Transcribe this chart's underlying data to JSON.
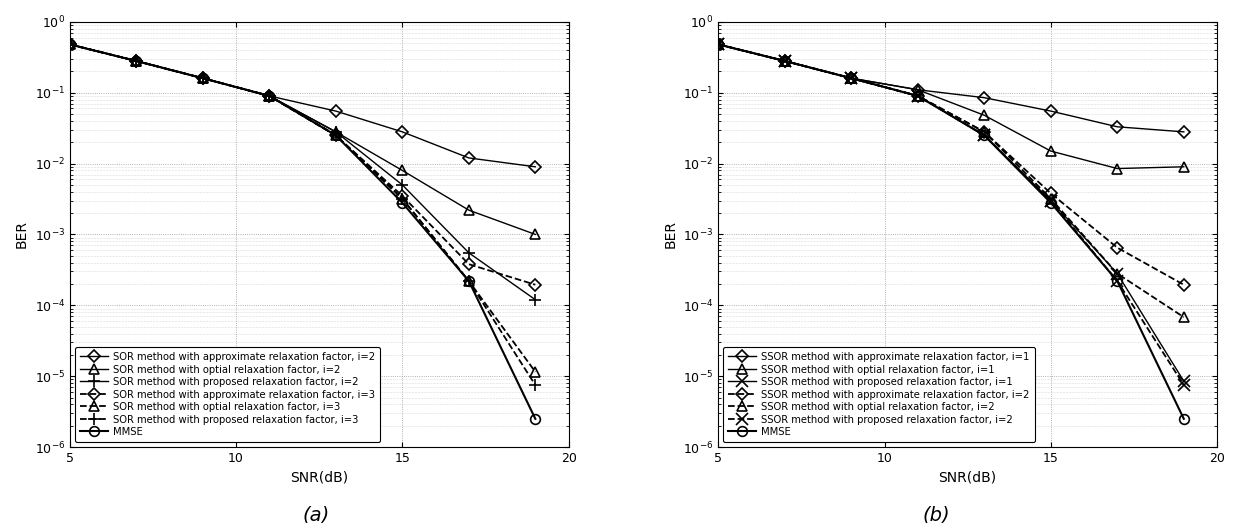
{
  "snr": [
    5,
    7,
    9,
    11,
    13,
    15,
    17,
    19
  ],
  "plot_a": {
    "title": "(a)",
    "xlabel": "SNR(dB)",
    "ylabel": "BER",
    "ylim_log": [
      -6,
      0
    ],
    "xlim": [
      5,
      20
    ],
    "series": [
      {
        "label": "SOR method with approximate relaxation factor, i=2",
        "marker": "D",
        "linestyle": "-",
        "linewidth": 1.0,
        "markersize": 6,
        "color": "#000000",
        "fillstyle": "none",
        "values": [
          0.48,
          0.28,
          0.16,
          0.09,
          0.055,
          0.028,
          0.012,
          0.009
        ]
      },
      {
        "label": "SOR method with optial relaxation factor, i=2",
        "marker": "^",
        "linestyle": "-",
        "linewidth": 1.0,
        "markersize": 7,
        "color": "#000000",
        "fillstyle": "none",
        "values": [
          0.48,
          0.28,
          0.16,
          0.09,
          0.028,
          0.008,
          0.0022,
          0.001
        ]
      },
      {
        "label": "SOR method with proposed relaxation factor, i=2",
        "marker": "+",
        "linestyle": "-",
        "linewidth": 1.0,
        "markersize": 9,
        "color": "#000000",
        "fillstyle": "full",
        "values": [
          0.48,
          0.28,
          0.16,
          0.09,
          0.028,
          0.005,
          0.00055,
          0.00012
        ]
      },
      {
        "label": "SOR method with approximate relaxation factor, i=3",
        "marker": "D",
        "linestyle": "--",
        "linewidth": 1.3,
        "markersize": 6,
        "color": "#000000",
        "fillstyle": "none",
        "values": [
          0.48,
          0.28,
          0.16,
          0.09,
          0.025,
          0.0035,
          0.00038,
          0.000195
        ]
      },
      {
        "label": "SOR method with optial relaxation factor, i=3",
        "marker": "^",
        "linestyle": "--",
        "linewidth": 1.3,
        "markersize": 7,
        "color": "#000000",
        "fillstyle": "none",
        "values": [
          0.48,
          0.28,
          0.16,
          0.09,
          0.025,
          0.0032,
          0.00022,
          1.15e-05
        ]
      },
      {
        "label": "SOR method with proposed relaxation factor, i=3",
        "marker": "+",
        "linestyle": "--",
        "linewidth": 1.3,
        "markersize": 9,
        "color": "#000000",
        "fillstyle": "full",
        "values": [
          0.48,
          0.28,
          0.16,
          0.09,
          0.025,
          0.0032,
          0.00022,
          7.5e-06
        ]
      },
      {
        "label": "MMSE",
        "marker": "o",
        "linestyle": "-",
        "linewidth": 1.5,
        "markersize": 7,
        "color": "#000000",
        "fillstyle": "none",
        "values": [
          0.48,
          0.28,
          0.16,
          0.09,
          0.025,
          0.0028,
          0.00022,
          2.5e-06
        ]
      }
    ]
  },
  "plot_b": {
    "title": "(b)",
    "xlabel": "SNR(dB)",
    "ylabel": "BER",
    "ylim_log": [
      -6,
      0
    ],
    "xlim": [
      5,
      20
    ],
    "series": [
      {
        "label": "SSOR method with approximate relaxation factor, i=1",
        "marker": "D",
        "linestyle": "-",
        "linewidth": 1.0,
        "markersize": 6,
        "color": "#000000",
        "fillstyle": "none",
        "values": [
          0.48,
          0.28,
          0.16,
          0.11,
          0.085,
          0.055,
          0.033,
          0.028
        ]
      },
      {
        "label": "SSOR method with optial relaxation factor, i=1",
        "marker": "^",
        "linestyle": "-",
        "linewidth": 1.0,
        "markersize": 7,
        "color": "#000000",
        "fillstyle": "none",
        "values": [
          0.48,
          0.28,
          0.16,
          0.11,
          0.048,
          0.015,
          0.0085,
          0.009
        ]
      },
      {
        "label": "SSOR method with proposed relaxation factor, i=1",
        "marker": "x",
        "linestyle": "-",
        "linewidth": 1.0,
        "markersize": 8,
        "color": "#000000",
        "fillstyle": "full",
        "values": [
          0.48,
          0.28,
          0.16,
          0.09,
          0.025,
          0.003,
          0.00028,
          8.5e-06
        ]
      },
      {
        "label": "SSOR method with approximate relaxation factor, i=2",
        "marker": "D",
        "linestyle": "--",
        "linewidth": 1.3,
        "markersize": 6,
        "color": "#000000",
        "fillstyle": "none",
        "values": [
          0.48,
          0.28,
          0.16,
          0.09,
          0.028,
          0.0038,
          0.00065,
          0.000195
        ]
      },
      {
        "label": "SSOR method with optial relaxation factor, i=2",
        "marker": "^",
        "linestyle": "--",
        "linewidth": 1.3,
        "markersize": 7,
        "color": "#000000",
        "fillstyle": "none",
        "values": [
          0.48,
          0.28,
          0.16,
          0.09,
          0.028,
          0.0032,
          0.00028,
          6.8e-05
        ]
      },
      {
        "label": "SSOR method with proposed relaxation factor, i=2",
        "marker": "x",
        "linestyle": "--",
        "linewidth": 1.3,
        "markersize": 8,
        "color": "#000000",
        "fillstyle": "full",
        "values": [
          0.48,
          0.28,
          0.16,
          0.09,
          0.025,
          0.003,
          0.00022,
          7.5e-06
        ]
      },
      {
        "label": "MMSE",
        "marker": "o",
        "linestyle": "-",
        "linewidth": 1.5,
        "markersize": 7,
        "color": "#000000",
        "fillstyle": "none",
        "values": [
          0.48,
          0.28,
          0.16,
          0.09,
          0.025,
          0.0028,
          0.00022,
          2.5e-06
        ]
      }
    ]
  },
  "background_color": "#ffffff",
  "grid_color": "#888888",
  "legend_fontsize": 7.2,
  "tick_fontsize": 9,
  "label_fontsize": 10,
  "caption_fontsize": 14
}
